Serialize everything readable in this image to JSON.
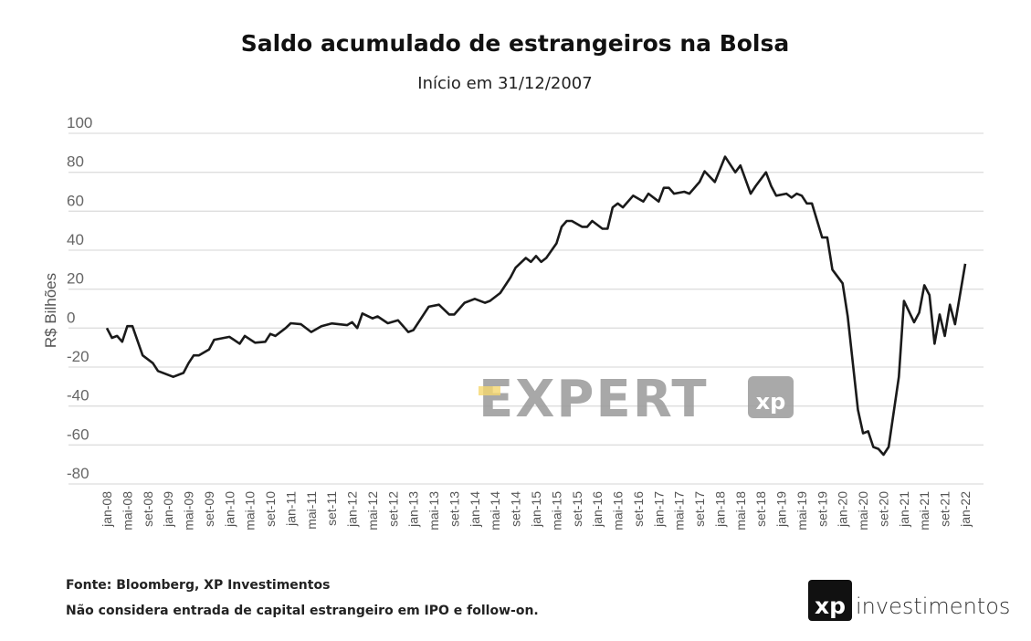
{
  "chart_data": {
    "type": "line",
    "title": "Saldo acumulado de estrangeiros na Bolsa",
    "subtitle": "Início em 31/12/2007",
    "ylabel": "R$ Bilhões",
    "xlabel": "",
    "ylim": [
      -80,
      100
    ],
    "yticks": [
      100,
      80,
      60,
      40,
      20,
      0,
      -20,
      -40,
      -60,
      -80
    ],
    "grid": true,
    "x_unit": "months since jan-08",
    "xtick_step_months": 4,
    "xticks": [
      "jan-08",
      "mai-08",
      "set-08",
      "jan-09",
      "mai-09",
      "set-09",
      "jan-10",
      "mai-10",
      "set-10",
      "jan-11",
      "mai-11",
      "set-11",
      "jan-12",
      "mai-12",
      "set-12",
      "jan-13",
      "mai-13",
      "set-13",
      "jan-14",
      "mai-14",
      "set-14",
      "jan-15",
      "mai-15",
      "set-15",
      "jan-16",
      "mai-16",
      "set-16",
      "jan-17",
      "mai-17",
      "set-17",
      "jan-18",
      "mai-18",
      "set-18",
      "jan-19",
      "mai-19",
      "set-19",
      "jan-20",
      "mai-20",
      "set-20",
      "jan-21",
      "mai-21",
      "set-21",
      "jan-22"
    ],
    "series": [
      {
        "name": "Saldo acumulado",
        "color": "#1a1a1a",
        "points": [
          [
            0,
            0
          ],
          [
            1,
            -5
          ],
          [
            2,
            -4
          ],
          [
            3,
            -7
          ],
          [
            4,
            1
          ],
          [
            5,
            1
          ],
          [
            7,
            -14
          ],
          [
            9,
            -18
          ],
          [
            10,
            -22
          ],
          [
            13,
            -25
          ],
          [
            15,
            -23
          ],
          [
            16,
            -18
          ],
          [
            17,
            -14
          ],
          [
            18,
            -14
          ],
          [
            20,
            -11
          ],
          [
            21,
            -6
          ],
          [
            24,
            -4.5
          ],
          [
            26,
            -8
          ],
          [
            27,
            -4
          ],
          [
            29,
            -7.5
          ],
          [
            31,
            -7
          ],
          [
            32,
            -3
          ],
          [
            33,
            -4
          ],
          [
            35,
            0
          ],
          [
            36,
            2.5
          ],
          [
            38,
            2
          ],
          [
            40,
            -2
          ],
          [
            42,
            1
          ],
          [
            44,
            2.4
          ],
          [
            47,
            1.5
          ],
          [
            48,
            3
          ],
          [
            49,
            0
          ],
          [
            50,
            7.5
          ],
          [
            52,
            5
          ],
          [
            53,
            6
          ],
          [
            55,
            2.5
          ],
          [
            57,
            4
          ],
          [
            59,
            -2
          ],
          [
            60,
            -1
          ],
          [
            62,
            7
          ],
          [
            63,
            11
          ],
          [
            65,
            12
          ],
          [
            67,
            7
          ],
          [
            68,
            7
          ],
          [
            70,
            13
          ],
          [
            72,
            15
          ],
          [
            74,
            13
          ],
          [
            75,
            14
          ],
          [
            77,
            18
          ],
          [
            78,
            22
          ],
          [
            79,
            26
          ],
          [
            80,
            31
          ],
          [
            82,
            36
          ],
          [
            83,
            34
          ],
          [
            84,
            37
          ],
          [
            85,
            34
          ],
          [
            86,
            36
          ],
          [
            88,
            43.5
          ],
          [
            89,
            52
          ],
          [
            90,
            55
          ],
          [
            91,
            55
          ],
          [
            93,
            52
          ],
          [
            94,
            52
          ],
          [
            95,
            55
          ],
          [
            97,
            51
          ],
          [
            98,
            51
          ],
          [
            99,
            62
          ],
          [
            100,
            64
          ],
          [
            101,
            62
          ],
          [
            103,
            68
          ],
          [
            105,
            65
          ],
          [
            106,
            69
          ],
          [
            108,
            65
          ],
          [
            109,
            72
          ],
          [
            110,
            72
          ],
          [
            111,
            69
          ],
          [
            113,
            70
          ],
          [
            114,
            69
          ],
          [
            116,
            75
          ],
          [
            117,
            80.5
          ],
          [
            119,
            75
          ],
          [
            121,
            88
          ],
          [
            123,
            80
          ],
          [
            124,
            83.5
          ],
          [
            126,
            69
          ],
          [
            127,
            73
          ],
          [
            129,
            80
          ],
          [
            130,
            73
          ],
          [
            131,
            68
          ],
          [
            133,
            69
          ],
          [
            134,
            67
          ],
          [
            135,
            69
          ],
          [
            136,
            68
          ],
          [
            137,
            64
          ],
          [
            138,
            64
          ],
          [
            140,
            46.5
          ],
          [
            141,
            46.5
          ],
          [
            142,
            30
          ],
          [
            144,
            23
          ],
          [
            145,
            6
          ],
          [
            147,
            -42
          ],
          [
            148,
            -54
          ],
          [
            149,
            -53
          ],
          [
            150,
            -61
          ],
          [
            151,
            -62
          ],
          [
            152,
            -65
          ],
          [
            153,
            -61
          ],
          [
            155,
            -25
          ],
          [
            156,
            14
          ],
          [
            158,
            3
          ],
          [
            159,
            8
          ],
          [
            160,
            22
          ],
          [
            161,
            17
          ],
          [
            162,
            -8
          ],
          [
            163,
            7
          ],
          [
            164,
            -4
          ],
          [
            165,
            12
          ],
          [
            166,
            2
          ],
          [
            168,
            33
          ]
        ]
      }
    ]
  },
  "footer": {
    "source": "Fonte: Bloomberg, XP Investimentos",
    "note": "Não considera entrada de capital estrangeiro em IPO e follow-on."
  },
  "watermark": {
    "text": "EXPERT",
    "badge": "xp",
    "accent": "#f5d76e"
  },
  "logo": {
    "mark": "xp",
    "text": "investimentos"
  }
}
